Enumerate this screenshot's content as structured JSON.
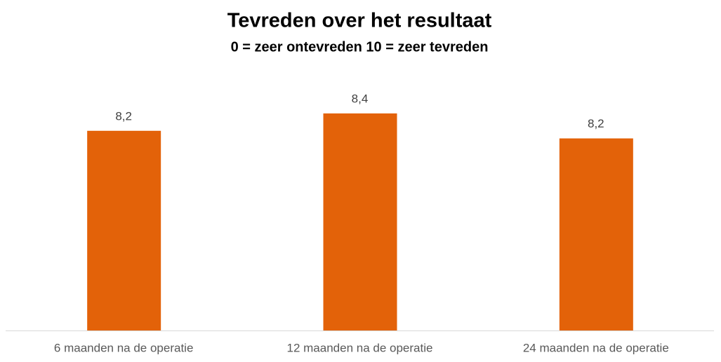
{
  "chart_data": {
    "type": "bar",
    "title": "Tevreden over het resultaat",
    "subtitle": "0 = zeer ontevreden   10 = zeer tevreden",
    "categories": [
      "6 maanden na de operatie",
      "12 maanden na de operatie",
      "24 maanden na de operatie"
    ],
    "values": [
      8.24,
      8.4,
      8.17
    ],
    "value_labels": [
      "8,2",
      "8,4",
      "8,2"
    ],
    "color": "#e36209",
    "ylim": [
      6.4,
      8.8
    ],
    "grid": false
  }
}
